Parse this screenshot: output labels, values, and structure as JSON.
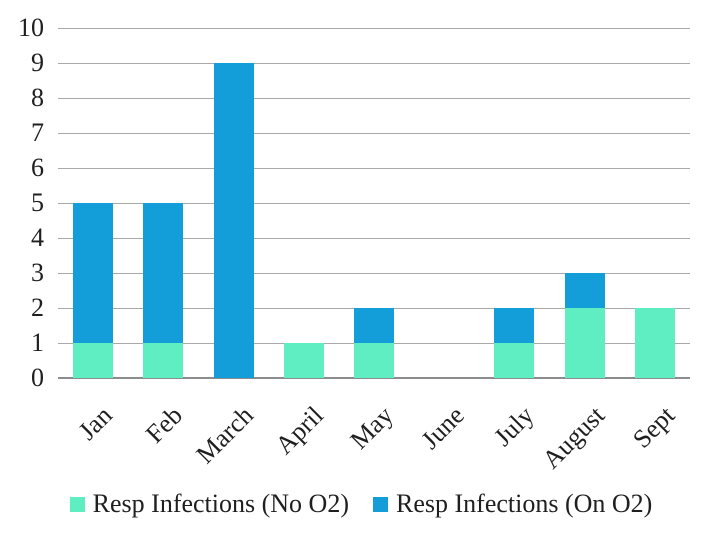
{
  "chart_data": {
    "type": "bar",
    "stacked": true,
    "title": "",
    "categories": [
      "Jan",
      "Feb",
      "March",
      "April",
      "May",
      "June",
      "July",
      "August",
      "Sept"
    ],
    "series": [
      {
        "name": "Resp Infections (No O2)",
        "color": "#5FEEC1",
        "values": [
          1,
          1,
          0,
          1,
          1,
          0,
          1,
          2,
          2
        ]
      },
      {
        "name": "Resp Infections (On O2)",
        "color": "#149ED9",
        "values": [
          4,
          4,
          9,
          0,
          1,
          0,
          1,
          1,
          0
        ]
      }
    ],
    "totals": [
      5,
      5,
      9,
      1,
      2,
      0,
      2,
      3,
      2
    ],
    "ylim": [
      0,
      10
    ],
    "yticks": [
      0,
      1,
      2,
      3,
      4,
      5,
      6,
      7,
      8,
      9,
      10
    ],
    "grid": true,
    "legend_position": "bottom"
  },
  "colors": {
    "gridline": "#A9A9A9",
    "axis_line": "#8C8C8C",
    "text": "#1F1F1F",
    "background": "#FFFFFF"
  }
}
